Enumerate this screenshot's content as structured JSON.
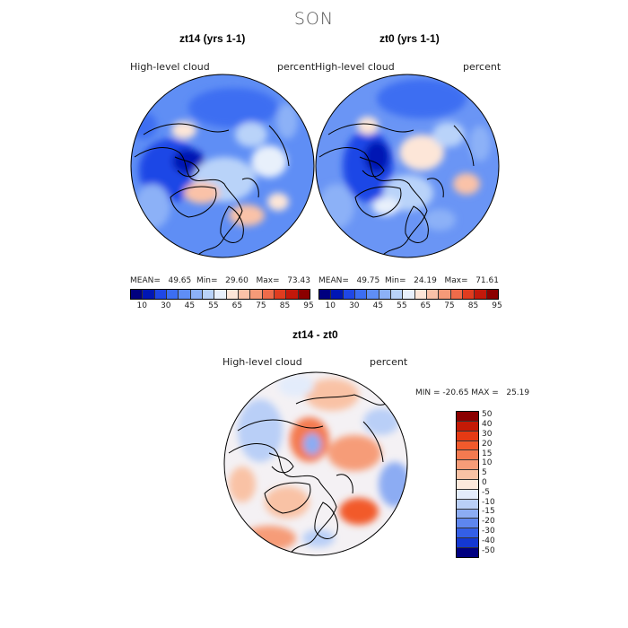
{
  "page": {
    "title": "SON"
  },
  "panels": [
    {
      "title": "zt14 (yrs 1-1)",
      "variable": "High-level cloud",
      "units": "percent",
      "stats": {
        "mean_label": "MEAN=",
        "mean": "49.65",
        "min_label": "Min=",
        "min": "29.60",
        "max_label": "Max=",
        "max": "73.43"
      }
    },
    {
      "title": "zt0 (yrs 1-1)",
      "variable": "High-level cloud",
      "units": "percent",
      "stats": {
        "mean_label": "MEAN=",
        "mean": "49.75",
        "min_label": "Min=",
        "min": "24.19",
        "max_label": "Max=",
        "max": "71.61"
      }
    },
    {
      "title": "zt14 - zt0",
      "variable": "High-level cloud",
      "units": "percent",
      "stats_text": "MIN = -20.65 MAX =   25.19"
    }
  ],
  "colorbar_abs": {
    "colors": [
      "#00007f",
      "#0016b4",
      "#1f47e6",
      "#3c6ef2",
      "#5f8ef5",
      "#8cb1f7",
      "#b9d3f9",
      "#e8f0fb",
      "#fde6d8",
      "#fac2a8",
      "#f59a78",
      "#ee6b4a",
      "#e03c1f",
      "#c3180a",
      "#8b0000"
    ],
    "labels": [
      "10",
      "30",
      "45",
      "55",
      "65",
      "75",
      "85",
      "95"
    ]
  },
  "colorbar_diff": {
    "colors": [
      "#8b0000",
      "#c41a06",
      "#e53a14",
      "#f25a2c",
      "#f47a50",
      "#f69c78",
      "#f9c2a5",
      "#fde9dc",
      "#e3ecfb",
      "#b9cff7",
      "#8cacf3",
      "#5e86ee",
      "#345fe6",
      "#1438d2",
      "#000080"
    ],
    "labels": [
      "50",
      "40",
      "30",
      "20",
      "15",
      "10",
      "5",
      "0",
      "-5",
      "-10",
      "-15",
      "-20",
      "-30",
      "-40",
      "-50"
    ]
  },
  "maps": [
    {
      "base": "#5f8ef5"
    },
    {
      "base": "#6a95f5"
    },
    {
      "base": "#f4f1f4"
    }
  ]
}
